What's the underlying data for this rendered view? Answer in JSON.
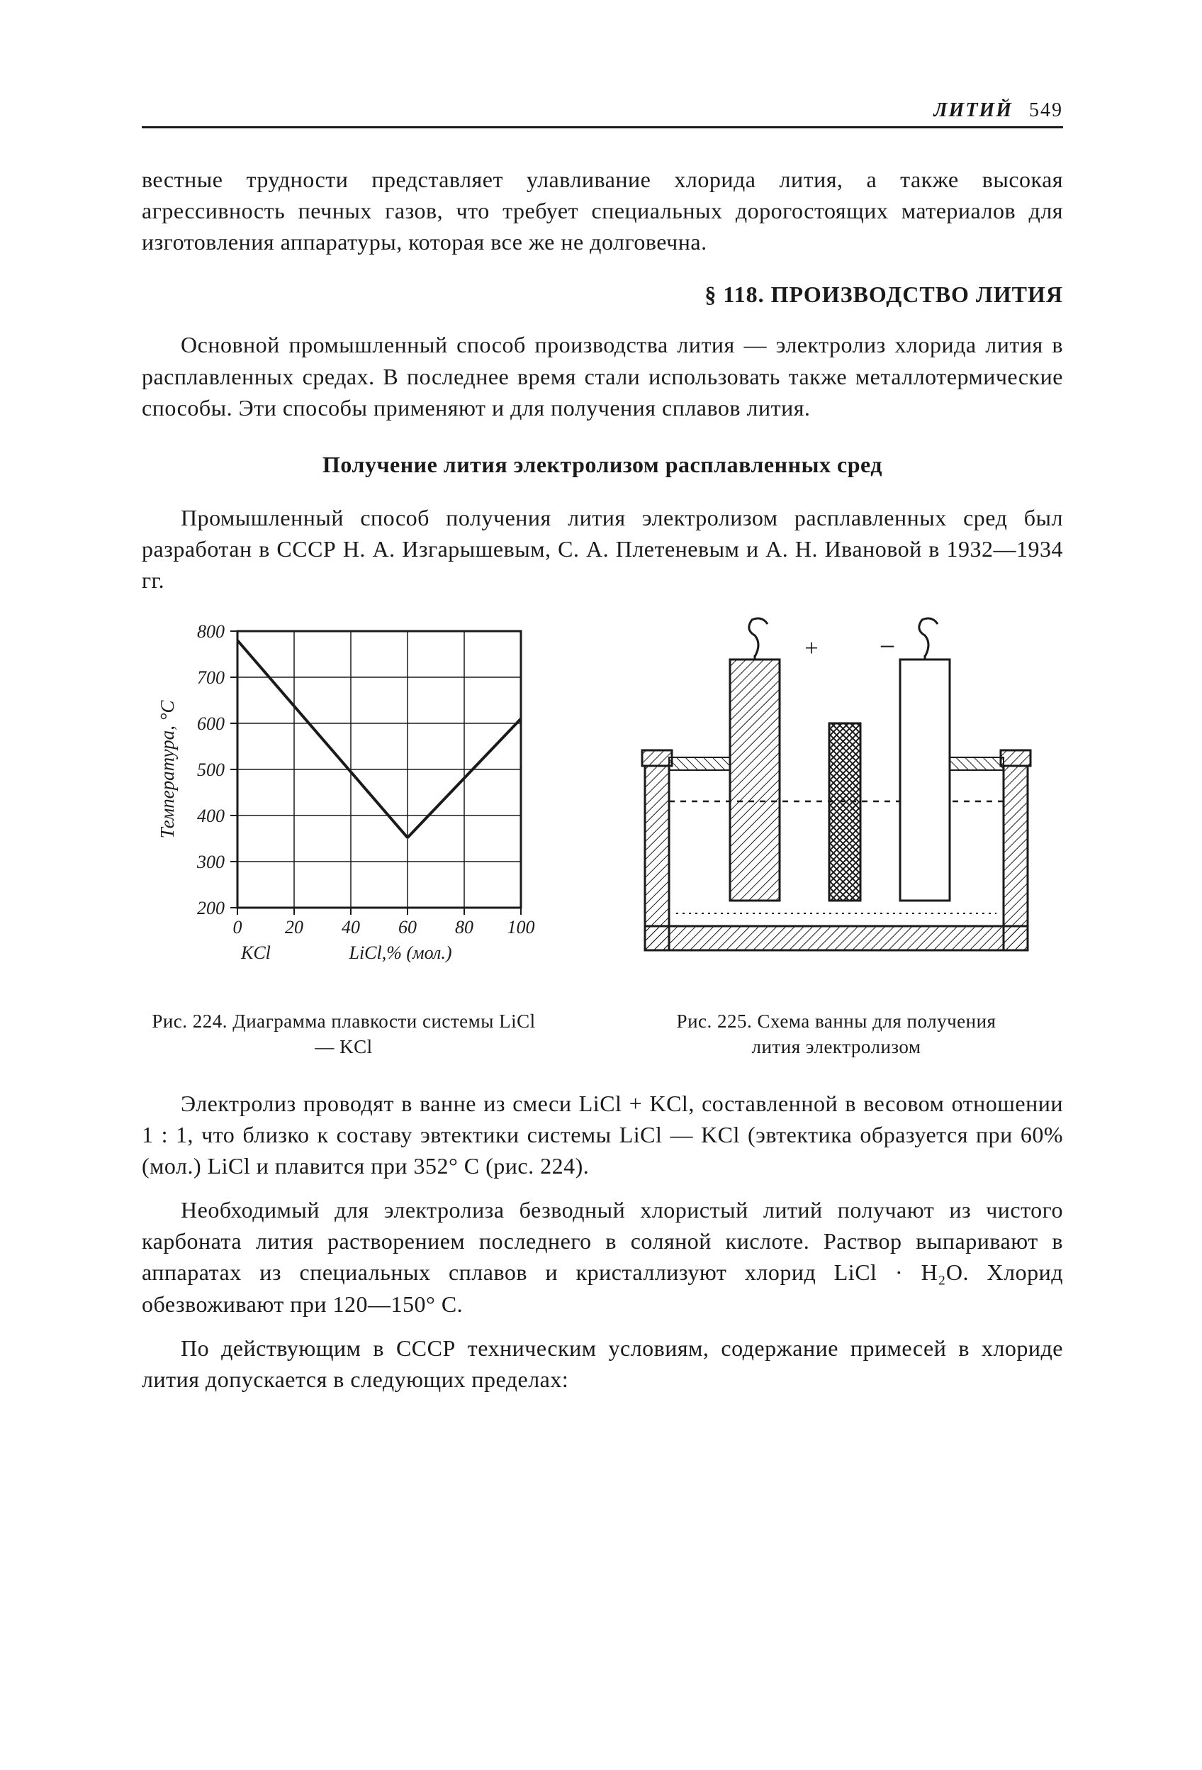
{
  "page": {
    "running_head_title": "ЛИТИЙ",
    "page_number": "549"
  },
  "paragraphs": {
    "p1": "вестные трудности представляет улавливание хлорида лития, а также высокая агрессивность печных газов, что требует специальных дорогостоящих материалов для изготовления аппаратуры, которая все же не долговечна.",
    "section_title": "§ 118. ПРОИЗВОДСТВО ЛИТИЯ",
    "p2": "Основной промышленный способ производства лития — электролиз хлорида лития в расплавленных средах. В последнее время стали использовать также металлотермические способы. Эти способы применяют и для получения сплавов лития.",
    "sub_title": "Получение лития электролизом расплавленных сред",
    "p3": "Промышленный способ получения лития электролизом расплавленных сред был разработан в СССР Н. А. Изгарышевым, С. А. Плетеневым и А. Н. Ивановой в 1932—1934 гг.",
    "p4": "Электролиз проводят в ванне из смеси LiCl + KCl, составленной в весовом отношении 1 : 1, что близко к составу эвтектики системы LiCl — KCl (эвтектика образуется при 60% (мол.) LiCl и плавится при 352° С (рис. 224).",
    "p5": "Необходимый для электролиза безводный хлористый литий получают из чистого карбоната лития растворением последнего в соляной кислоте. Раствор выпаривают в аппаратах из специальных сплавов и кристаллизуют хлорид LiCl · H₂O. Хлорид обезвоживают при 120—150° С.",
    "p6": "По действующим в СССР техническим условиям, содержание примесей в хлориде лития допускается в следующих пределах:"
  },
  "fig224": {
    "type": "line",
    "caption": "Рис. 224. Диаграмма плавкости системы LiCl — KCl",
    "x_label": "LiCl,% (мол.)",
    "x_left_label": "KCl",
    "y_label": "Температура, °С",
    "xlim": [
      0,
      100
    ],
    "ylim": [
      200,
      800
    ],
    "x_ticks": [
      0,
      20,
      40,
      60,
      80,
      100
    ],
    "y_ticks": [
      200,
      300,
      400,
      500,
      600,
      700,
      800
    ],
    "line_color": "#1a1a1a",
    "line_width": 3,
    "grid_color": "#1a1a1a",
    "background_color": "#ffffff",
    "series": [
      {
        "x": [
          0,
          60
        ],
        "y": [
          780,
          352
        ]
      },
      {
        "x": [
          60,
          100
        ],
        "y": [
          352,
          610
        ]
      }
    ]
  },
  "fig225": {
    "type": "schematic",
    "caption": "Рис. 225. Схема ванны для получения лития электролизом",
    "stroke": "#1a1a1a",
    "stroke_width": 3,
    "hatch_spacing": 9,
    "liquid_dash": "8 8",
    "plus_label": "+",
    "minus_label": "−"
  }
}
